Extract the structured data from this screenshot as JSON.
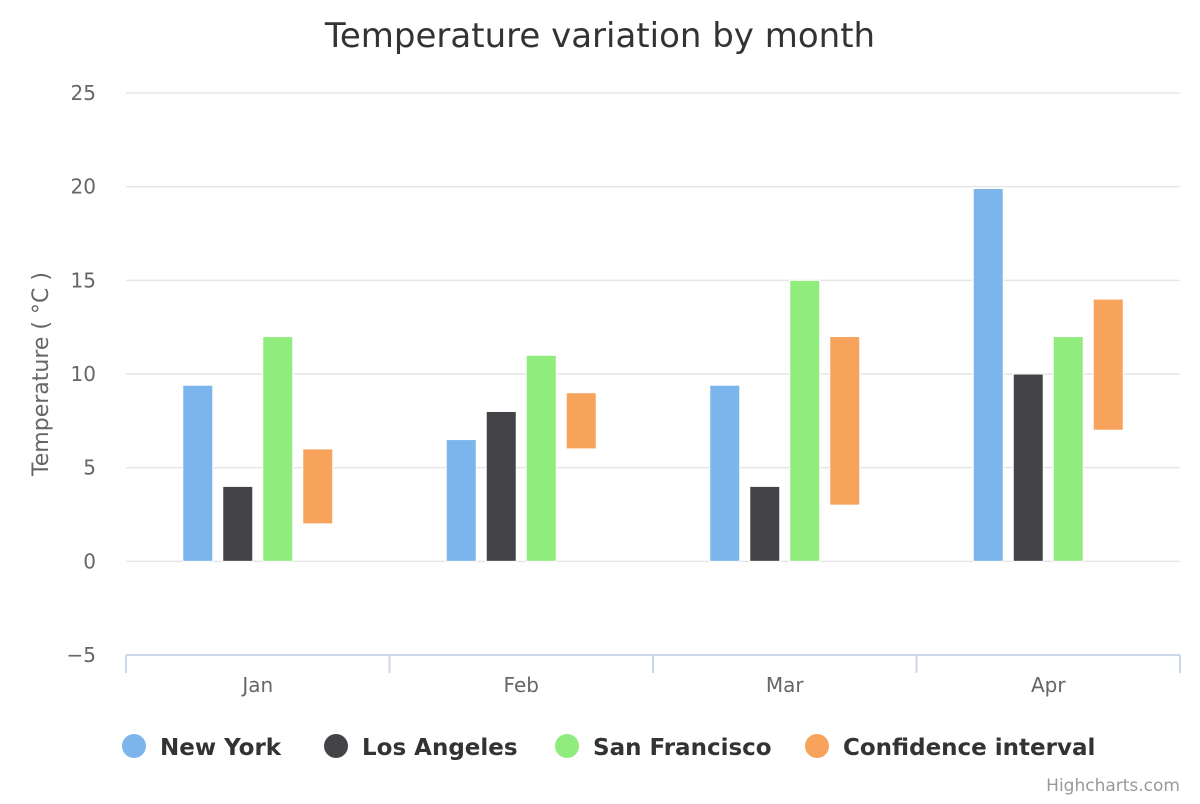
{
  "chart_data": {
    "type": "bar",
    "title": "Temperature variation by month",
    "ylabel": "Temperature ( °C )",
    "xlabel": "",
    "categories": [
      "Jan",
      "Feb",
      "Mar",
      "Apr"
    ],
    "ylim": [
      -5,
      25
    ],
    "yticks": [
      -5,
      0,
      5,
      10,
      15,
      20,
      25
    ],
    "grid": true,
    "legend_position": "bottom",
    "series": [
      {
        "name": "New York",
        "color": "#7cb5ec",
        "values": [
          9.4,
          6.5,
          9.4,
          19.9
        ]
      },
      {
        "name": "Los Angeles",
        "color": "#434348",
        "values": [
          4,
          8,
          4,
          10
        ]
      },
      {
        "name": "San Francisco",
        "color": "#90ed7d",
        "values": [
          12,
          11,
          15,
          12
        ]
      },
      {
        "name": "Confidence interval",
        "color": "#f7a35c",
        "type": "range",
        "ranges": [
          [
            2,
            6
          ],
          [
            6,
            9
          ],
          [
            3,
            12
          ],
          [
            7,
            14
          ]
        ]
      }
    ]
  },
  "credits": "Highcharts.com"
}
